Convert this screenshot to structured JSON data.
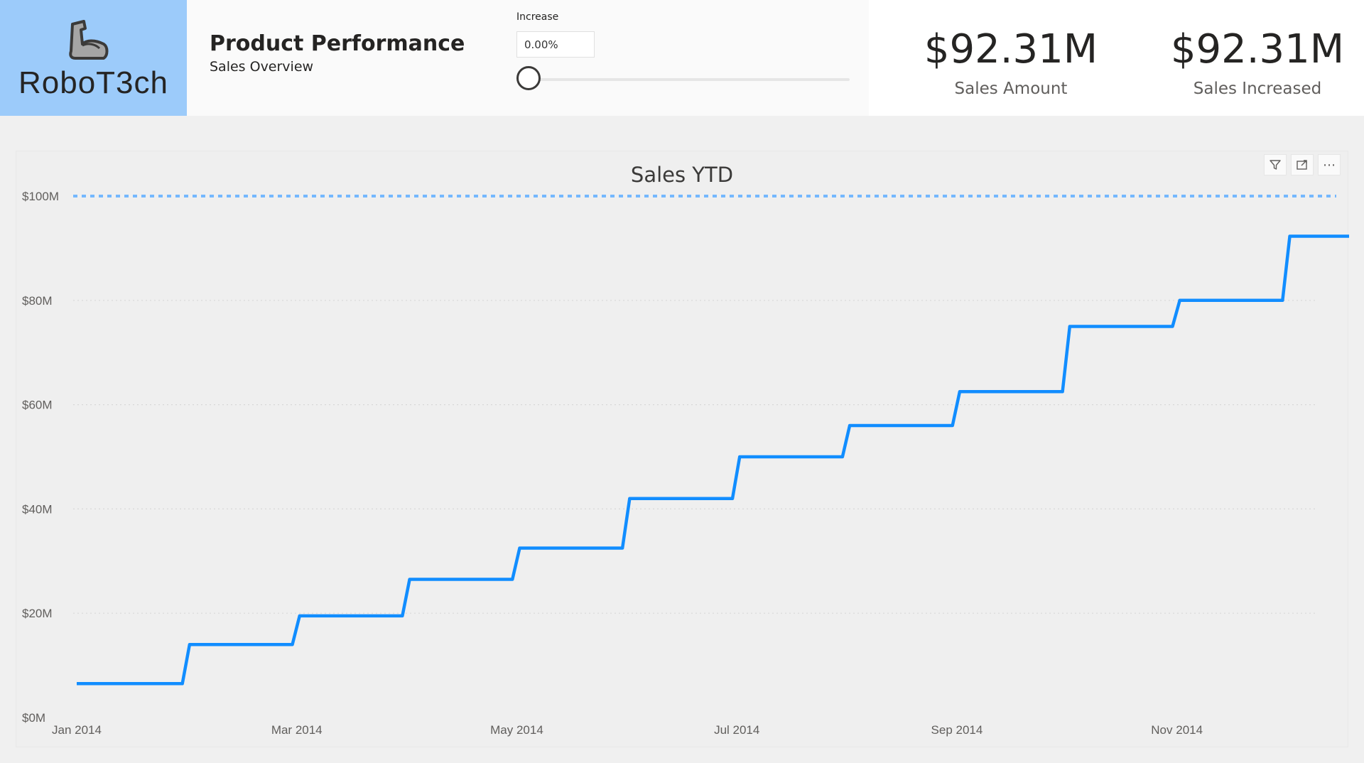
{
  "logo": {
    "text": "RoboT3ch",
    "icon": "flexed-arm-icon",
    "background": "#9ccbfa"
  },
  "header": {
    "title": "Product Performance",
    "subtitle": "Sales Overview"
  },
  "slicer": {
    "label": "Increase",
    "value": "0.00%",
    "slider_percent": 0
  },
  "kpis": [
    {
      "value": "$92.31M",
      "label": "Sales Amount"
    },
    {
      "value": "$92.31M",
      "label": "Sales Increased"
    }
  ],
  "visual_header": {
    "filter_icon": "filter-icon",
    "focus_icon": "focus-mode-icon",
    "more_label": "⋯"
  },
  "chart_data": {
    "type": "line",
    "title": "Sales YTD",
    "xlabel": "",
    "ylabel": "",
    "line_style": "step",
    "grid": true,
    "series_color": "#118dff",
    "x_tick_labels": [
      "Jan 2014",
      "Mar 2014",
      "May 2014",
      "Jul 2014",
      "Sep 2014",
      "Nov 2014"
    ],
    "y_tick_labels": [
      "$0M",
      "$20M",
      "$40M",
      "$60M",
      "$80M",
      "$100M"
    ],
    "ylim": [
      0,
      100
    ],
    "x": [
      "Jan 2014",
      "Feb 2014",
      "Mar 2014",
      "Apr 2014",
      "May 2014",
      "Jun 2014",
      "Jul 2014",
      "Aug 2014",
      "Sep 2014",
      "Oct 2014",
      "Nov 2014",
      "Dec 2014"
    ],
    "series": [
      {
        "values": [
          6.5,
          14.0,
          19.5,
          26.5,
          32.5,
          42.0,
          50.0,
          56.0,
          62.5,
          75.0,
          80.0,
          92.31
        ]
      }
    ],
    "reference_line": {
      "value": 100,
      "style": "dashed",
      "color": "#74b8ff"
    }
  }
}
